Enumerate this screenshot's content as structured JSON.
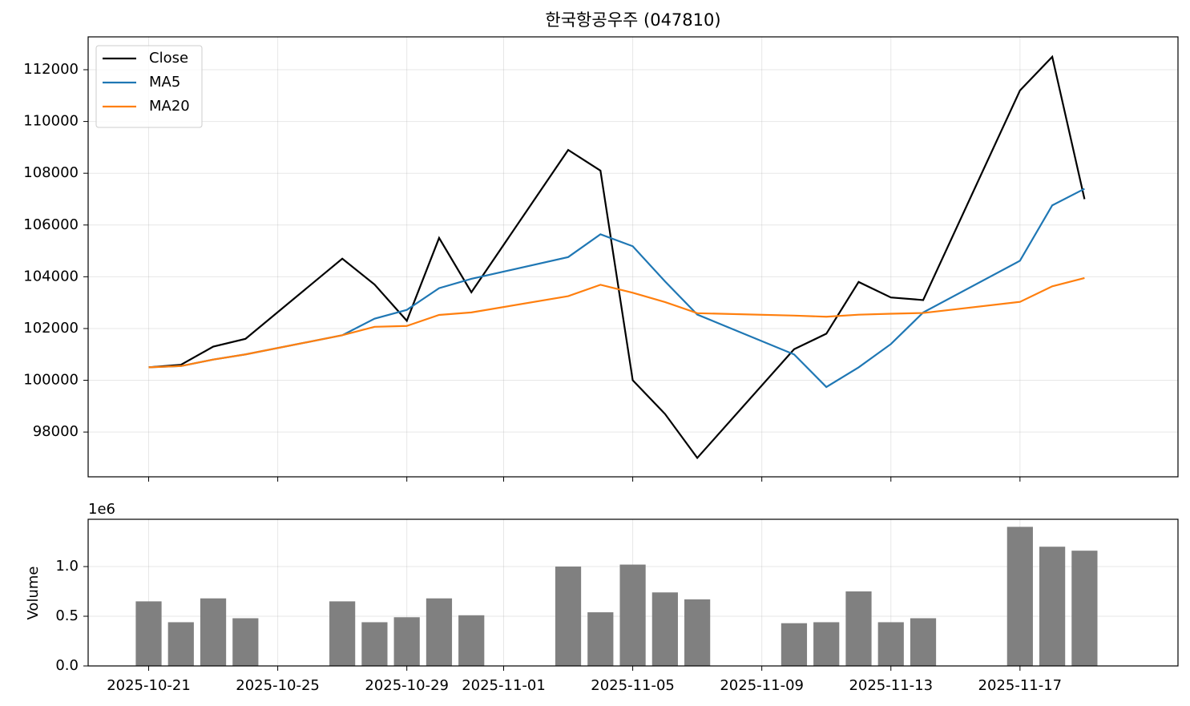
{
  "chart_data": [
    {
      "type": "line",
      "title": "한국항공우주 (047810)",
      "x": [
        "2025-10-21",
        "2025-10-22",
        "2025-10-23",
        "2025-10-24",
        "2025-10-27",
        "2025-10-28",
        "2025-10-29",
        "2025-10-30",
        "2025-10-31",
        "2025-11-03",
        "2025-11-04",
        "2025-11-05",
        "2025-11-06",
        "2025-11-07",
        "2025-11-10",
        "2025-11-11",
        "2025-11-12",
        "2025-11-13",
        "2025-11-14",
        "2025-11-17",
        "2025-11-18",
        "2025-11-19"
      ],
      "series": [
        {
          "name": "Close",
          "color": "#000000",
          "values": [
            100500,
            100600,
            101300,
            101600,
            104700,
            103700,
            102300,
            105500,
            103400,
            108900,
            108100,
            100000,
            98700,
            97000,
            101200,
            101800,
            103800,
            103200,
            103100,
            111200,
            112500,
            107000
          ]
        },
        {
          "name": "MA5",
          "color": "#1f77b4",
          "values": [
            100500,
            100550,
            100800,
            101000,
            101740,
            102380,
            102720,
            103560,
            103920,
            104760,
            105640,
            105180,
            103820,
            102540,
            101000,
            99740,
            100500,
            101400,
            102620,
            104620,
            106760,
            107400
          ]
        },
        {
          "name": "MA20",
          "color": "#ff7f0e",
          "values": [
            100500,
            100550,
            100800,
            101000,
            101740,
            102067,
            102100,
            102525,
            102622,
            103250,
            103691,
            103383,
            103023,
            102593,
            102500,
            102456,
            102535,
            102572,
            102600,
            103030,
            103630,
            103950
          ]
        }
      ],
      "xlim": [
        "2025-10-19T03:00",
        "2025-11-21T21:30"
      ],
      "ylim": [
        96270,
        113270
      ],
      "yticks": [
        98000,
        100000,
        102000,
        104000,
        106000,
        108000,
        110000,
        112000
      ],
      "grid": true,
      "legend": "upper left"
    },
    {
      "type": "bar",
      "y_label": "Volume",
      "offset_label": "1e6",
      "color": "#808080",
      "x": [
        "2025-10-21",
        "2025-10-22",
        "2025-10-23",
        "2025-10-24",
        "2025-10-27",
        "2025-10-28",
        "2025-10-29",
        "2025-10-30",
        "2025-10-31",
        "2025-11-03",
        "2025-11-04",
        "2025-11-05",
        "2025-11-06",
        "2025-11-07",
        "2025-11-10",
        "2025-11-11",
        "2025-11-12",
        "2025-11-13",
        "2025-11-14",
        "2025-11-17",
        "2025-11-18",
        "2025-11-19"
      ],
      "values": [
        0.65,
        0.44,
        0.68,
        0.48,
        0.65,
        0.44,
        0.49,
        0.68,
        0.51,
        1.0,
        0.54,
        1.02,
        0.74,
        0.67,
        0.43,
        0.44,
        0.75,
        0.44,
        0.48,
        1.4,
        1.2,
        1.16
      ],
      "xlim": [
        "2025-10-19T03:00",
        "2025-11-21T21:30"
      ],
      "xticks": [
        "2025-10-21",
        "2025-10-25",
        "2025-10-29",
        "2025-11-01",
        "2025-11-05",
        "2025-11-09",
        "2025-11-13",
        "2025-11-17"
      ],
      "ylim": [
        0,
        1.476
      ],
      "yticks": [
        {
          "value": 0,
          "label": "0.0"
        },
        0.5,
        {
          "value": 1,
          "label": "1.0"
        }
      ],
      "grid": true
    }
  ]
}
